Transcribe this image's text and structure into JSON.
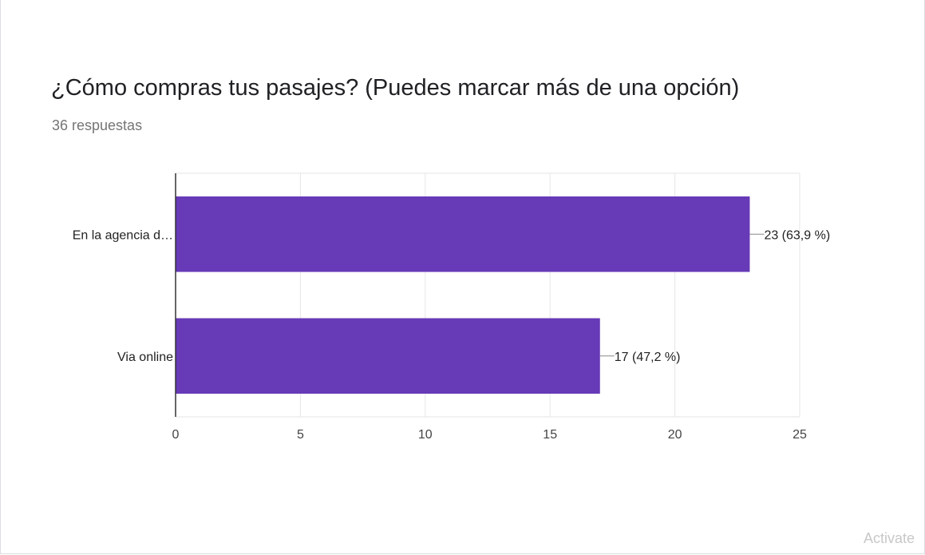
{
  "question": {
    "title": "¿Cómo compras tus pasajes? (Puedes marcar más de una opción)",
    "responses": "36 respuestas"
  },
  "chart_data": {
    "type": "bar",
    "orientation": "horizontal",
    "categories": [
      "En la agencia d…",
      "Via online"
    ],
    "values": [
      23,
      17
    ],
    "data_labels": [
      "23 (63,9 %)",
      "17 (47,2 %)"
    ],
    "xlim": [
      0,
      25
    ],
    "xticks": [
      "0",
      "5",
      "10",
      "15",
      "20",
      "25"
    ],
    "grid": true,
    "bar_color": "#673ab7"
  },
  "watermark": "Activate"
}
